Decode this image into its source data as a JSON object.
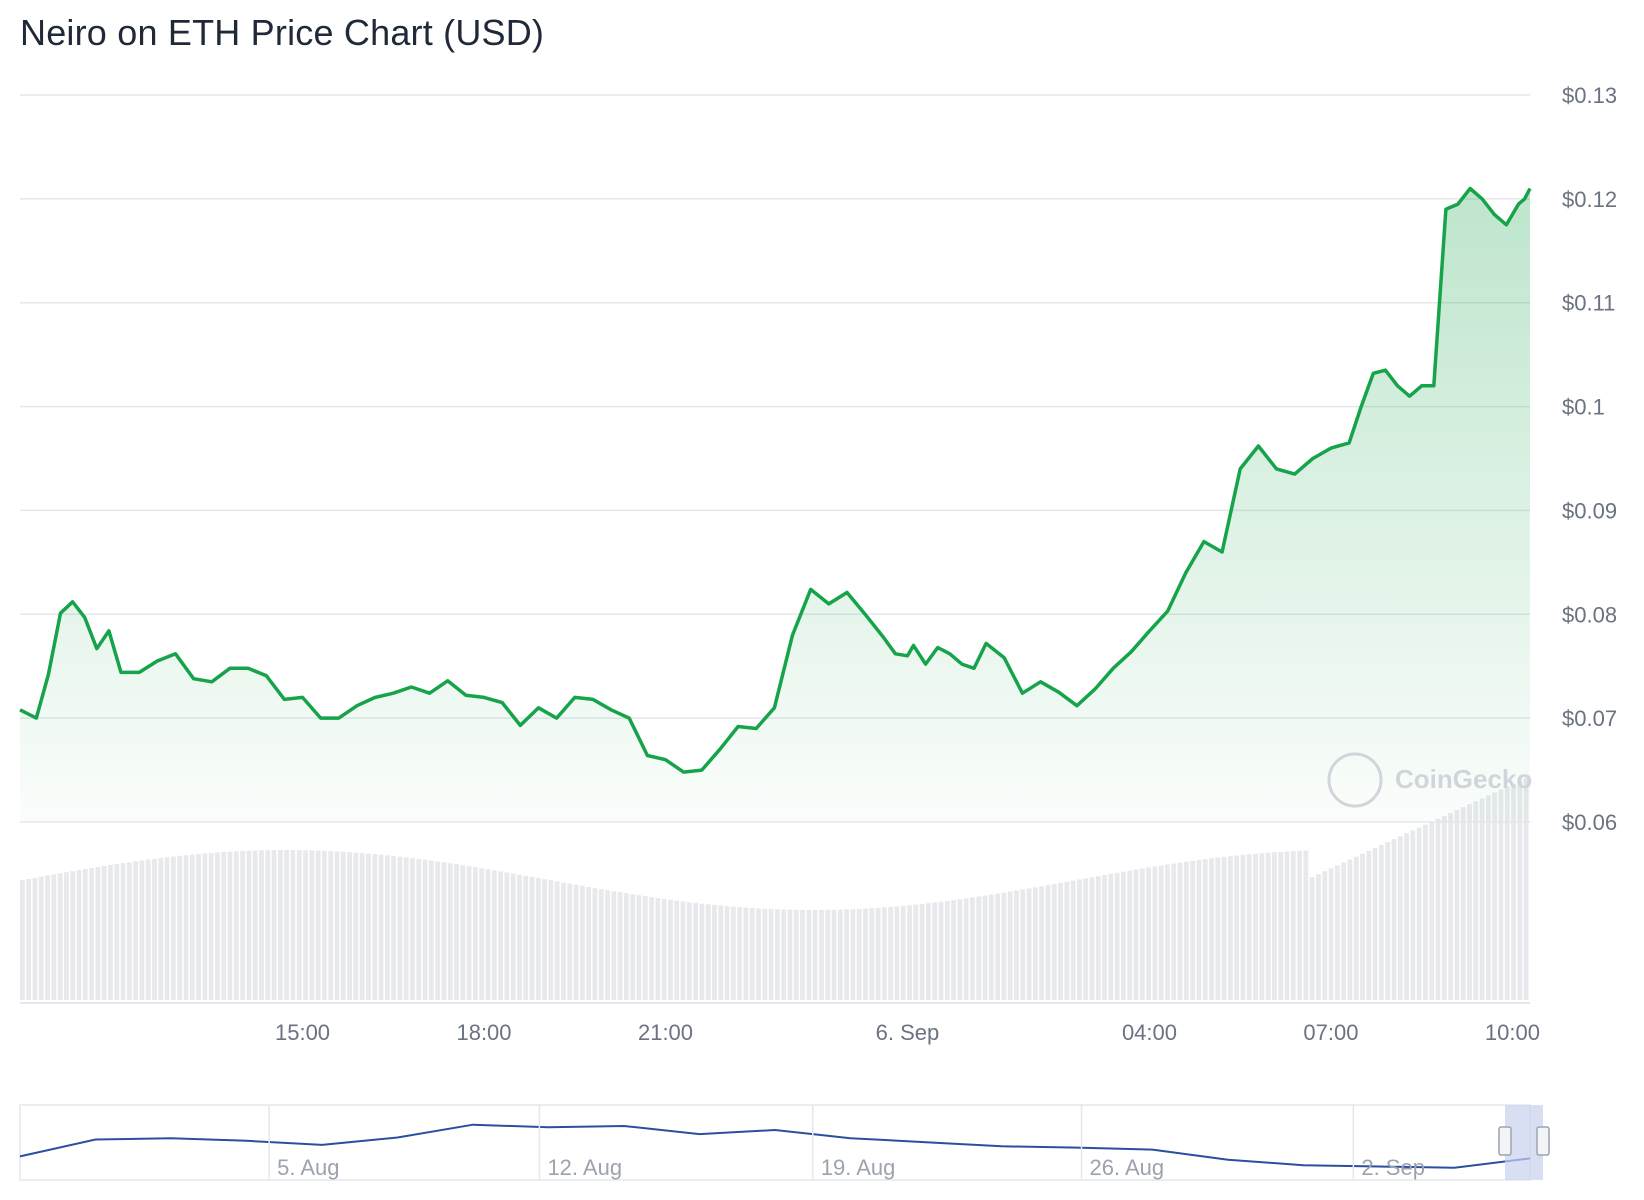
{
  "chart_data": {
    "type": "line",
    "title": "Neiro on ETH Price Chart (USD)",
    "watermark": "CoinGecko",
    "y_ticks": [
      "$0.06",
      "$0.07",
      "$0.08",
      "$0.09",
      "$0.1",
      "$0.11",
      "$0.12",
      "$0.13"
    ],
    "ylim": [
      0.06,
      0.13
    ],
    "x_ticks": [
      {
        "label": "15:00",
        "t": 14
      },
      {
        "label": "18:00",
        "t": 17
      },
      {
        "label": "21:00",
        "t": 20
      },
      {
        "label": "6. Sep",
        "t": 24
      },
      {
        "label": "04:00",
        "t": 28
      },
      {
        "label": "07:00",
        "t": 31
      },
      {
        "label": "10:00",
        "t": 34
      }
    ],
    "xlim": [
      9.33,
      34.29
    ],
    "colors": {
      "line": "#16a34a",
      "fill": "#16a34a",
      "grid": "#e5e7eb",
      "volume": "#e5e7eb",
      "navigator": "#2b4ea0",
      "navigator_mask": "#c7d2ee"
    },
    "series": [
      {
        "x": [
          9.33,
          9.6,
          9.8,
          10.0,
          10.2,
          10.4,
          10.6,
          10.8,
          11.0,
          11.3,
          11.6,
          11.9,
          12.2,
          12.5,
          12.8,
          13.1,
          13.4,
          13.7,
          14.0,
          14.3,
          14.6,
          14.9,
          15.2,
          15.5,
          15.8,
          16.1,
          16.4,
          16.7,
          17.0,
          17.3,
          17.6,
          17.9,
          18.2,
          18.5,
          18.8,
          19.1,
          19.4,
          19.7,
          20.0,
          20.3,
          20.6,
          20.9,
          21.2,
          21.5,
          21.8,
          22.1,
          22.4,
          22.7,
          23.0,
          23.3,
          23.6,
          23.8,
          24.0,
          24.1,
          24.3,
          24.5,
          24.7,
          24.9,
          25.1,
          25.3,
          25.6,
          25.9,
          26.2,
          26.5,
          26.8,
          27.1,
          27.4,
          27.7,
          28.0,
          28.3,
          28.6,
          28.9,
          29.2,
          29.5,
          29.8,
          30.1,
          30.4,
          30.7,
          31.0,
          31.3,
          31.5,
          31.7,
          31.9,
          32.1,
          32.3,
          32.5,
          32.7,
          32.9,
          33.1,
          33.3,
          33.5,
          33.7,
          33.9,
          34.05,
          34.1,
          34.2,
          34.29
        ],
        "y": [
          0.0708,
          0.07,
          0.0742,
          0.0801,
          0.0812,
          0.0797,
          0.0767,
          0.0784,
          0.0744,
          0.0744,
          0.0755,
          0.0762,
          0.0738,
          0.0735,
          0.0748,
          0.0748,
          0.0741,
          0.0718,
          0.072,
          0.07,
          0.07,
          0.0712,
          0.072,
          0.0724,
          0.073,
          0.0724,
          0.0736,
          0.0722,
          0.072,
          0.0715,
          0.0693,
          0.071,
          0.07,
          0.072,
          0.0718,
          0.0708,
          0.07,
          0.0664,
          0.066,
          0.0648,
          0.065,
          0.067,
          0.0692,
          0.069,
          0.071,
          0.078,
          0.0824,
          0.081,
          0.0821,
          0.08,
          0.0778,
          0.0762,
          0.076,
          0.077,
          0.0752,
          0.0768,
          0.0762,
          0.0752,
          0.0748,
          0.0772,
          0.0758,
          0.0724,
          0.0735,
          0.0725,
          0.0712,
          0.0728,
          0.0748,
          0.0764,
          0.0784,
          0.0803,
          0.084,
          0.087,
          0.086,
          0.094,
          0.0962,
          0.094,
          0.0935,
          0.095,
          0.096,
          0.0965,
          0.1,
          0.1032,
          0.1035,
          0.102,
          0.101,
          0.102,
          0.102,
          0.119,
          0.1195,
          0.121,
          0.12,
          0.1185,
          0.1175,
          0.119,
          0.1195,
          0.12,
          0.121
        ]
      }
    ],
    "navigator_ticks": [
      "5. Aug",
      "12. Aug",
      "19. Aug",
      "26. Aug",
      "2. Sep"
    ]
  }
}
